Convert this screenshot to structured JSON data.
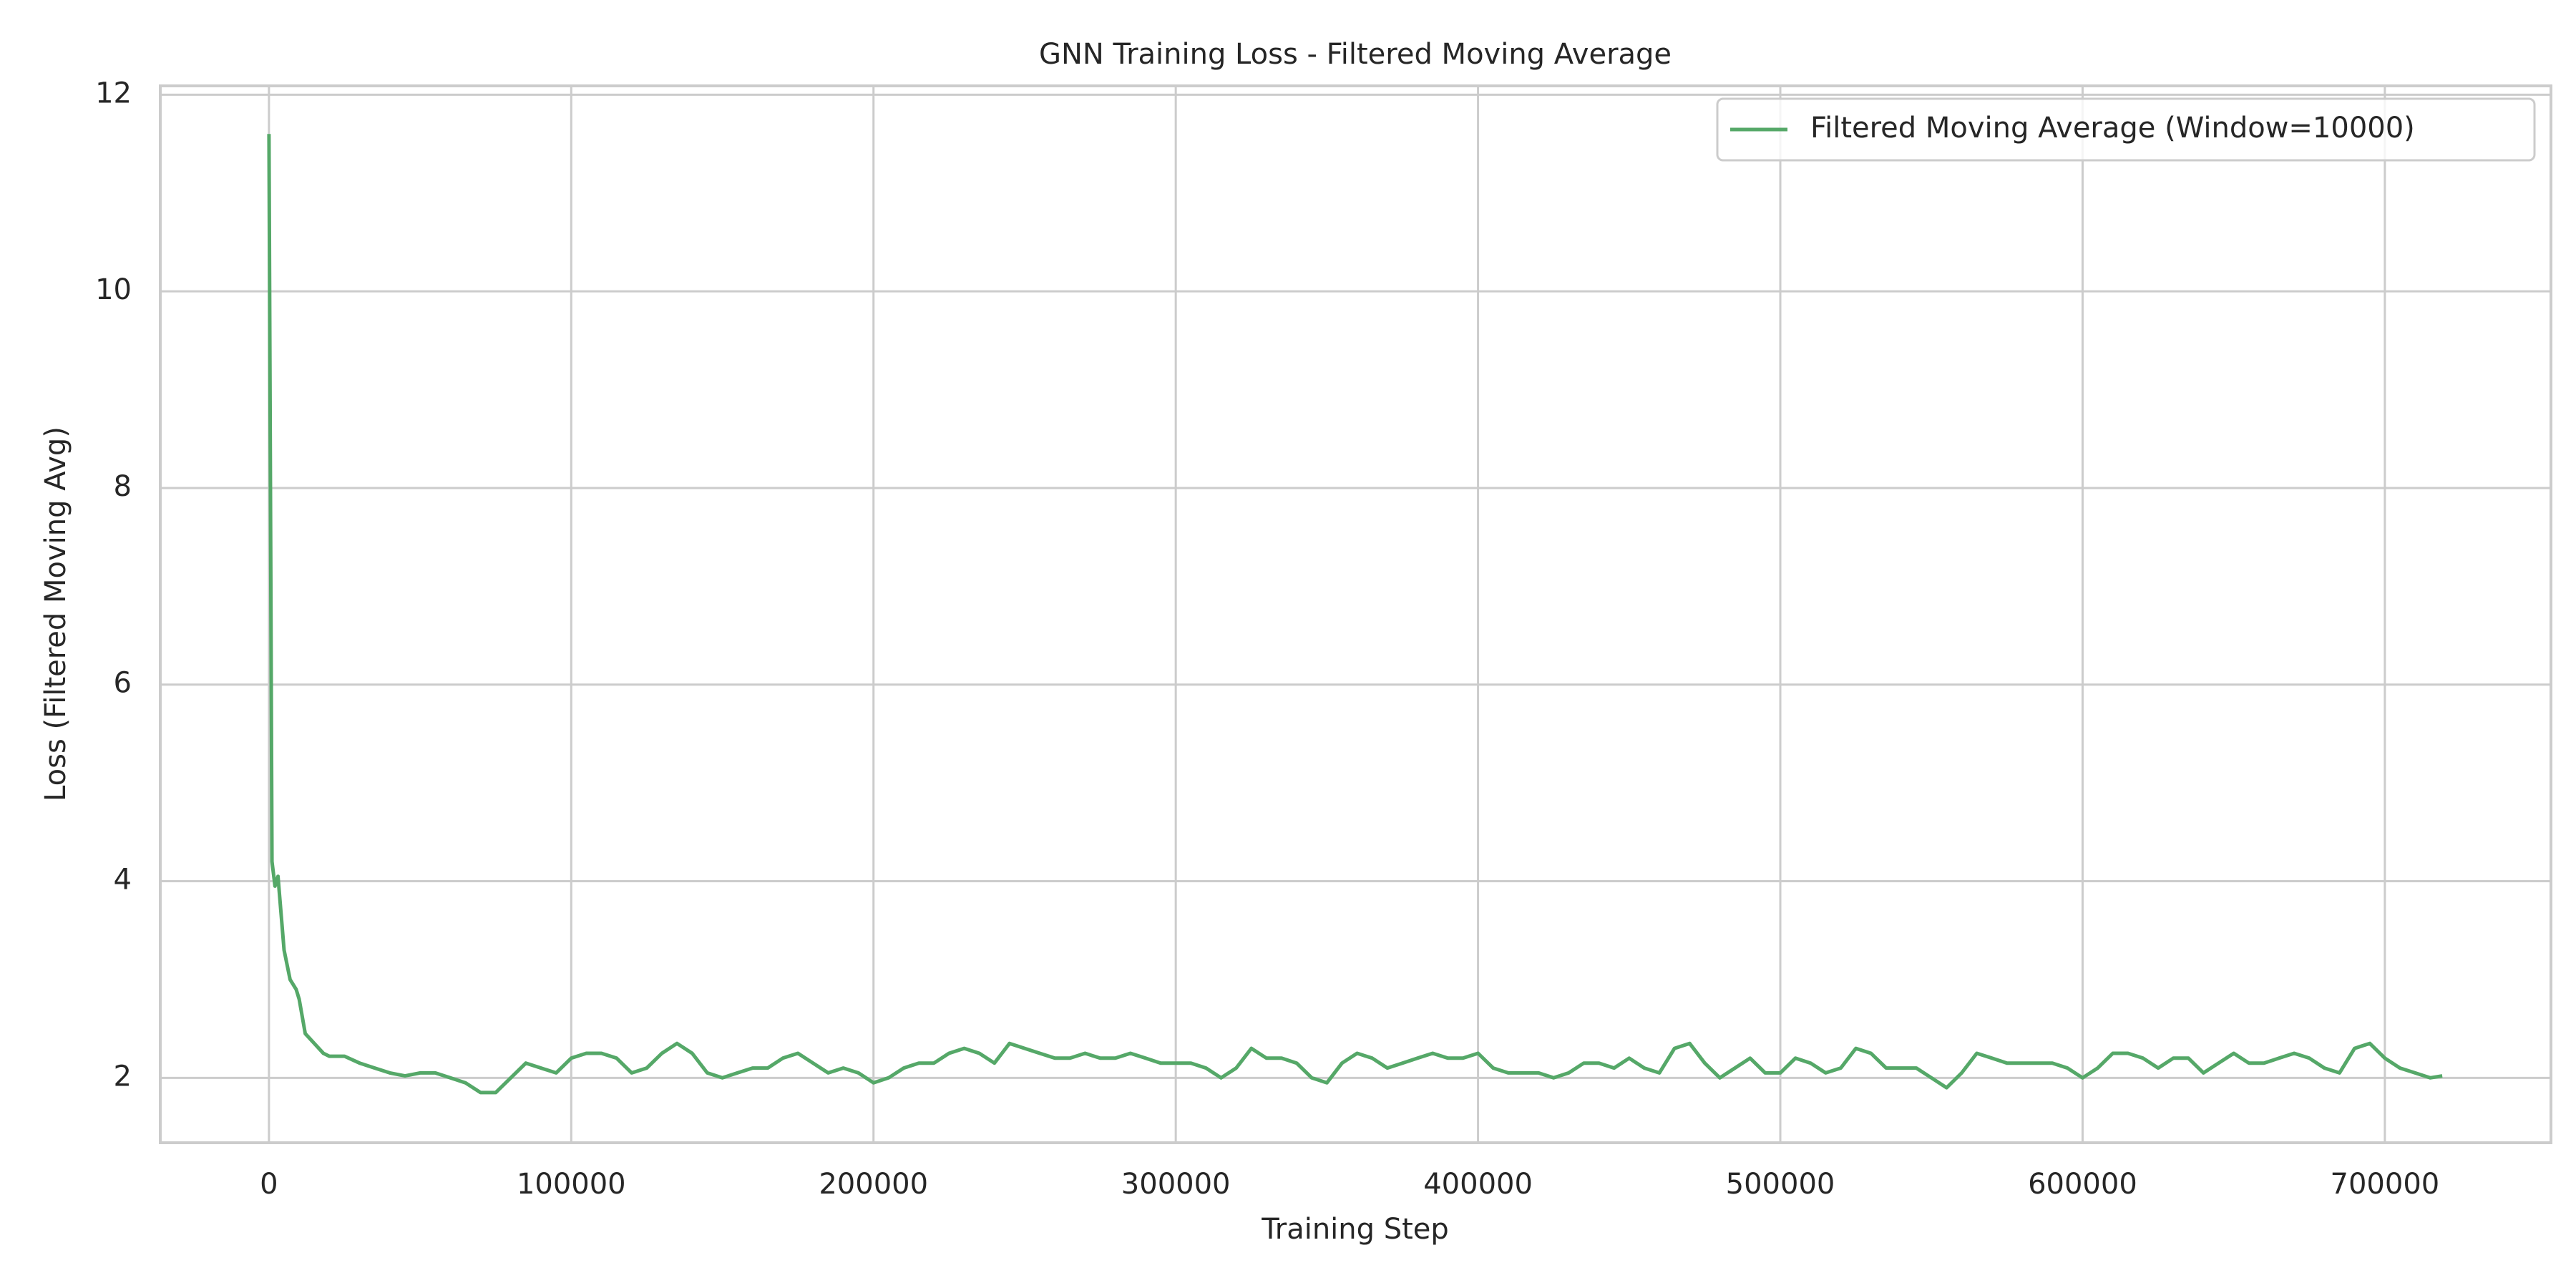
{
  "chart_data": {
    "type": "line",
    "title": "GNN Training Loss - Filtered Moving Average",
    "xlabel": "Training Step",
    "ylabel": "Loss (Filtered Moving Avg)",
    "x": [
      0,
      1000,
      2000,
      3000,
      5000,
      7000,
      9000,
      10000,
      12000,
      15000,
      18000,
      20000,
      25000,
      30000,
      35000,
      40000,
      45000,
      50000,
      55000,
      60000,
      65000,
      70000,
      75000,
      80000,
      85000,
      90000,
      95000,
      100000,
      105000,
      110000,
      115000,
      120000,
      125000,
      130000,
      135000,
      140000,
      145000,
      150000,
      155000,
      160000,
      165000,
      170000,
      175000,
      180000,
      185000,
      190000,
      195000,
      200000,
      205000,
      210000,
      215000,
      220000,
      225000,
      230000,
      235000,
      240000,
      245000,
      250000,
      255000,
      260000,
      265000,
      270000,
      275000,
      280000,
      285000,
      290000,
      295000,
      300000,
      305000,
      310000,
      315000,
      320000,
      325000,
      330000,
      335000,
      340000,
      345000,
      350000,
      355000,
      360000,
      365000,
      370000,
      375000,
      380000,
      385000,
      390000,
      395000,
      400000,
      405000,
      410000,
      415000,
      420000,
      425000,
      430000,
      435000,
      440000,
      445000,
      450000,
      455000,
      460000,
      465000,
      470000,
      475000,
      480000,
      485000,
      490000,
      495000,
      500000,
      505000,
      510000,
      515000,
      520000,
      525000,
      530000,
      535000,
      540000,
      545000,
      550000,
      555000,
      560000,
      565000,
      570000,
      575000,
      580000,
      585000,
      590000,
      595000,
      600000,
      605000,
      610000,
      615000,
      620000,
      625000,
      630000,
      635000,
      640000,
      645000,
      650000,
      655000,
      660000,
      665000,
      670000,
      675000,
      680000,
      685000,
      690000,
      695000,
      700000,
      705000,
      710000,
      715000,
      719000
    ],
    "series": [
      {
        "name": "Filtered Moving Average (Window=10000)",
        "color": "#55a868",
        "values": [
          11.6,
          4.2,
          3.95,
          4.05,
          3.3,
          3.0,
          2.9,
          2.8,
          2.45,
          2.35,
          2.25,
          2.22,
          2.22,
          2.15,
          2.1,
          2.05,
          2.02,
          2.05,
          2.05,
          2.0,
          1.95,
          1.85,
          1.85,
          2.0,
          2.15,
          2.1,
          2.05,
          2.2,
          2.25,
          2.25,
          2.2,
          2.05,
          2.1,
          2.25,
          2.35,
          2.25,
          2.05,
          2.0,
          2.05,
          2.1,
          2.1,
          2.2,
          2.25,
          2.15,
          2.05,
          2.1,
          2.05,
          1.95,
          2.0,
          2.1,
          2.15,
          2.15,
          2.25,
          2.3,
          2.25,
          2.15,
          2.35,
          2.3,
          2.25,
          2.2,
          2.2,
          2.25,
          2.2,
          2.2,
          2.25,
          2.2,
          2.15,
          2.15,
          2.15,
          2.1,
          2.0,
          2.1,
          2.3,
          2.2,
          2.2,
          2.15,
          2.0,
          1.95,
          2.15,
          2.25,
          2.2,
          2.1,
          2.15,
          2.2,
          2.25,
          2.2,
          2.2,
          2.25,
          2.1,
          2.05,
          2.05,
          2.05,
          2.0,
          2.05,
          2.15,
          2.15,
          2.1,
          2.2,
          2.1,
          2.05,
          2.3,
          2.35,
          2.15,
          2.0,
          2.1,
          2.2,
          2.05,
          2.05,
          2.2,
          2.15,
          2.05,
          2.1,
          2.3,
          2.25,
          2.1,
          2.1,
          2.1,
          2.0,
          1.9,
          2.05,
          2.25,
          2.2,
          2.15,
          2.15,
          2.15,
          2.15,
          2.1,
          2.0,
          2.1,
          2.25,
          2.25,
          2.2,
          2.1,
          2.2,
          2.2,
          2.05,
          2.15,
          2.25,
          2.15,
          2.15,
          2.2,
          2.25,
          2.2,
          2.1,
          2.05,
          2.3,
          2.35,
          2.2,
          2.1,
          2.05,
          2.0,
          2.02
        ]
      }
    ],
    "xlim": [
      -35950,
      754950
    ],
    "ylim": [
      1.34,
      12.09
    ],
    "xticks": [
      0,
      100000,
      200000,
      300000,
      400000,
      500000,
      600000,
      700000
    ],
    "yticks": [
      2,
      4,
      6,
      8,
      10,
      12
    ],
    "grid": true,
    "legend": "upper right"
  }
}
